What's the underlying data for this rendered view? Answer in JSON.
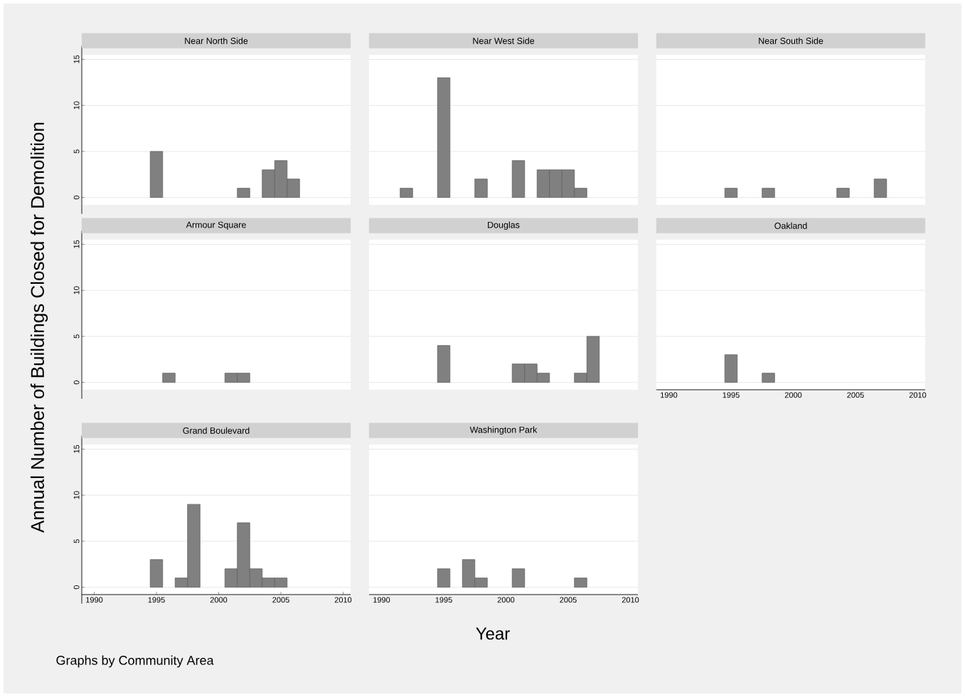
{
  "chart_data": [
    {
      "type": "bar",
      "title": "Near North Side",
      "x": [
        1995,
        2002,
        2004,
        2005,
        2006
      ],
      "values": [
        5,
        1,
        3,
        4,
        2
      ],
      "color": "#808080",
      "xlim": [
        1989,
        2010.6
      ],
      "ylim": [
        -0.8,
        15.5
      ],
      "yticks": [
        0,
        5,
        10,
        15
      ],
      "grid": "y",
      "tick_labels": "y"
    },
    {
      "type": "bar",
      "title": "Near West Side",
      "x": [
        1992,
        1995,
        1998,
        2001,
        2003,
        2004,
        2005,
        2006
      ],
      "values": [
        1,
        13,
        2,
        4,
        3,
        3,
        3,
        1
      ],
      "color": "#808080",
      "xlim": [
        1989,
        2010.6
      ],
      "ylim": [
        -0.8,
        15.5
      ],
      "yticks": [
        0,
        5,
        10,
        15
      ],
      "grid": "y",
      "tick_labels": false
    },
    {
      "type": "bar",
      "title": "Near South Side",
      "x": [
        1995,
        1998,
        2004,
        2007
      ],
      "values": [
        1,
        1,
        1,
        2
      ],
      "color": "#808080",
      "xlim": [
        1989,
        2010.6
      ],
      "ylim": [
        -0.8,
        15.5
      ],
      "yticks": [
        0,
        5,
        10,
        15
      ],
      "grid": "y",
      "tick_labels": false
    },
    {
      "type": "bar",
      "title": "Armour Square",
      "ylabel": "Annual Number of Buildings Closed for Demolition",
      "x": [
        1996,
        2001,
        2002
      ],
      "values": [
        1,
        1,
        1
      ],
      "color": "#808080",
      "xlim": [
        1989,
        2010.6
      ],
      "ylim": [
        -0.8,
        15.5
      ],
      "yticks": [
        0,
        5,
        10,
        15
      ],
      "grid": "y",
      "tick_labels": "y"
    },
    {
      "type": "bar",
      "title": "Douglas",
      "x": [
        1995,
        2001,
        2002,
        2003,
        2006,
        2007
      ],
      "values": [
        4,
        2,
        2,
        1,
        1,
        5
      ],
      "color": "#808080",
      "xlim": [
        1989,
        2010.6
      ],
      "ylim": [
        -0.8,
        15.5
      ],
      "yticks": [
        0,
        5,
        10,
        15
      ],
      "grid": "y",
      "tick_labels": false
    },
    {
      "type": "bar",
      "title": "Oakland",
      "x": [
        1995,
        1998
      ],
      "values": [
        3,
        1
      ],
      "color": "#808080",
      "xlim": [
        1989,
        2010.6
      ],
      "ylim": [
        -0.8,
        15.5
      ],
      "xticks": [
        1990,
        1995,
        2000,
        2005,
        2010
      ],
      "yticks": [
        0,
        5,
        10,
        15
      ],
      "grid": "y",
      "tick_labels": "x"
    },
    {
      "type": "bar",
      "title": "Grand Boulevard",
      "annotations": [
        "Graphs by Community Area"
      ],
      "x": [
        1995,
        1997,
        1998,
        2001,
        2002,
        2003,
        2004,
        2005
      ],
      "values": [
        3,
        1,
        9,
        2,
        7,
        2,
        1,
        1
      ],
      "color": "#808080",
      "xlim": [
        1989,
        2010.6
      ],
      "ylim": [
        -0.8,
        15.5
      ],
      "xticks": [
        1990,
        1995,
        2000,
        2005,
        2010
      ],
      "yticks": [
        0,
        5,
        10,
        15
      ],
      "grid": "y"
    },
    {
      "type": "bar",
      "title": "Washington Park",
      "xlabel": "Year",
      "x": [
        1995,
        1997,
        1998,
        2001,
        2006
      ],
      "values": [
        2,
        3,
        1,
        2,
        1
      ],
      "color": "#808080",
      "xlim": [
        1989,
        2010.6
      ],
      "ylim": [
        -0.8,
        15.5
      ],
      "xticks": [
        1990,
        1995,
        2000,
        2005,
        2010
      ],
      "yticks": [
        0,
        5,
        10,
        15
      ],
      "grid": "y",
      "tick_labels": "x"
    }
  ]
}
